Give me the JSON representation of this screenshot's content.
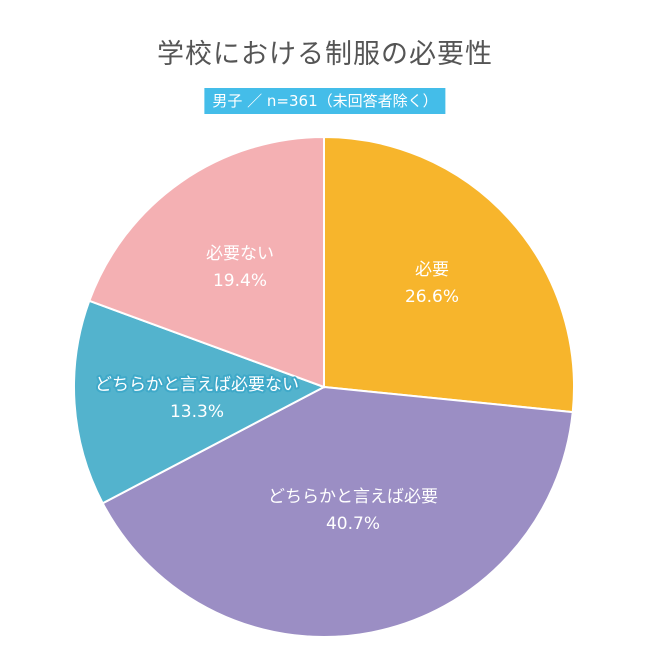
{
  "chart_data": {
    "type": "pie",
    "title": "学校における制服の必要性",
    "subtitle": "男子 ／ n=361（未回答者除く）",
    "start_angle_deg": 0,
    "direction": "clockwise",
    "slices": [
      {
        "label": "必要",
        "value": 26.6,
        "value_text": "26.6%",
        "color": "#f7b52c"
      },
      {
        "label": "どちらかと言えば必要",
        "value": 40.7,
        "value_text": "40.7%",
        "color": "#9b8ec4"
      },
      {
        "label": "どちらかと言えば必要ない",
        "value": 13.3,
        "value_text": "13.3%",
        "color": "#53b3cd"
      },
      {
        "label": "必要ない",
        "value": 19.4,
        "value_text": "19.4%",
        "color": "#f4b0b3"
      }
    ]
  }
}
